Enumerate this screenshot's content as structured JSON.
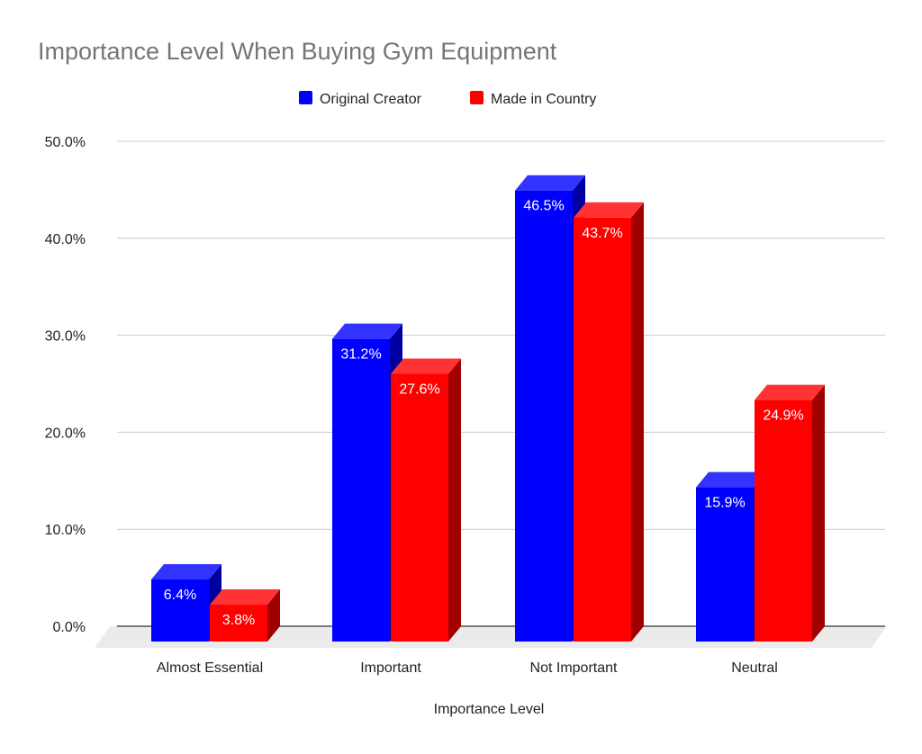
{
  "chart_data": {
    "type": "bar",
    "title": "Importance Level When Buying Gym Equipment",
    "xlabel": "Importance Level",
    "ylabel": "",
    "categories": [
      "Almost Essential",
      "Important",
      "Not Important",
      "Neutral"
    ],
    "series": [
      {
        "name": "Original Creator",
        "color": "#0000ff",
        "side": "#0000a0",
        "top": "#3333ff",
        "values": [
          6.4,
          31.2,
          46.5,
          15.9
        ],
        "labels": [
          "6.4%",
          "31.2%",
          "46.5%",
          "15.9%"
        ]
      },
      {
        "name": "Made in Country",
        "color": "#ff0000",
        "side": "#a00000",
        "top": "#ff3333",
        "values": [
          3.8,
          27.6,
          43.7,
          24.9
        ],
        "labels": [
          "3.8%",
          "27.6%",
          "43.7%",
          "24.9%"
        ]
      }
    ],
    "ylim": [
      0,
      50
    ],
    "yticks": [
      "0.0%",
      "10.0%",
      "20.0%",
      "30.0%",
      "40.0%",
      "50.0%"
    ],
    "grid": true,
    "legend": "top-center",
    "style": "3d"
  }
}
